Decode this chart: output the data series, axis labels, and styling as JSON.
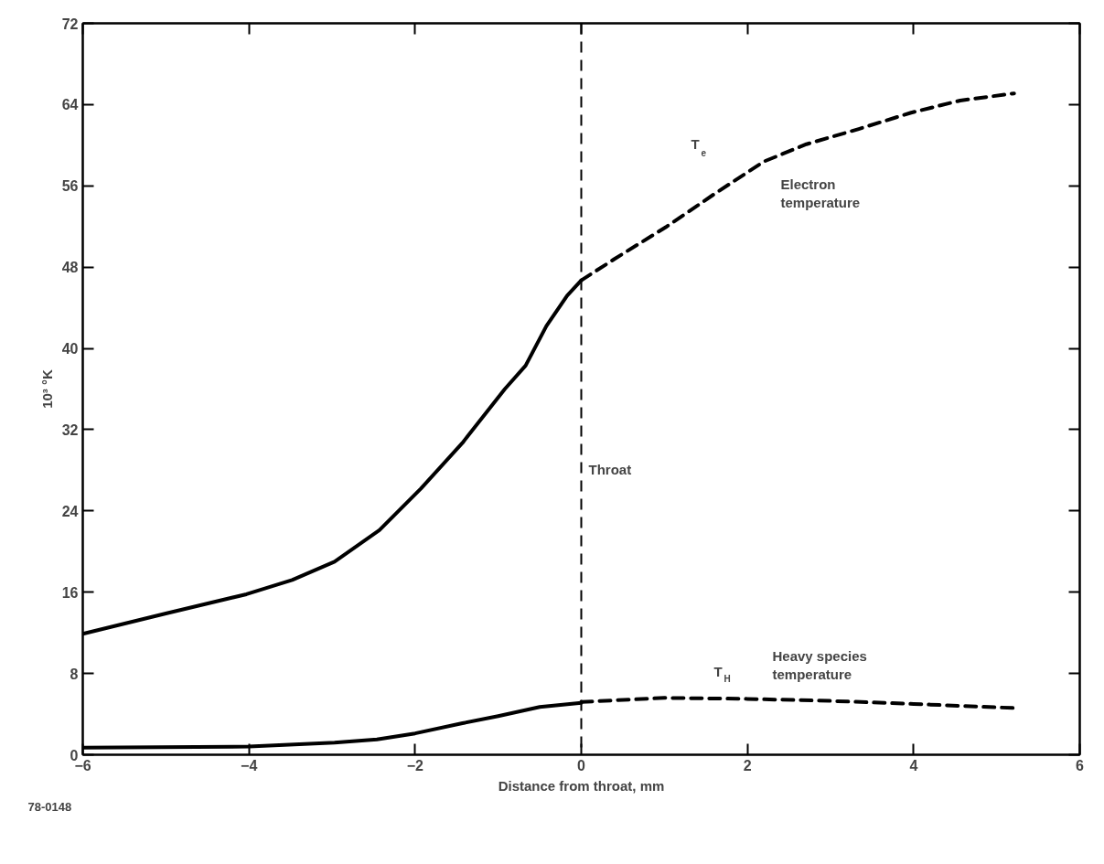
{
  "chart_data": {
    "type": "line",
    "xlabel": "Distance from throat, mm",
    "ylabel": "10³ °K",
    "xlim": [
      -6,
      6
    ],
    "ylim": [
      0,
      72
    ],
    "xticks": [
      -6,
      -4,
      -2,
      0,
      2,
      4,
      6
    ],
    "yticks": [
      0,
      8,
      16,
      24,
      32,
      40,
      48,
      56,
      64,
      72
    ],
    "grid": false,
    "marker": "none",
    "series": [
      {
        "color": "#000000",
        "line_style": "solid",
        "x": [
          -6,
          -5,
          -4.03,
          -3.48,
          -2.97,
          -2.43,
          -1.93,
          -1.43,
          -0.92,
          -0.67,
          -0.42,
          -0.17,
          0
        ],
        "values": [
          11.9,
          13.9,
          15.8,
          17.2,
          19.0,
          22.1,
          26.2,
          30.7,
          36.0,
          38.3,
          42.2,
          45.2,
          46.7
        ]
      },
      {
        "color": "#000000",
        "line_style": "dashed",
        "x": [
          0,
          0.4,
          1.03,
          1.62,
          2.2,
          2.71,
          3.34,
          3.97,
          4.56,
          5.21
        ],
        "values": [
          46.7,
          48.8,
          52.0,
          55.3,
          58.4,
          60.1,
          61.6,
          63.2,
          64.4,
          65.1
        ]
      },
      {
        "color": "#000000",
        "line_style": "solid",
        "x": [
          -6,
          -4,
          -2.97,
          -2.46,
          -2.0,
          -1.43,
          -1.0,
          -0.5,
          0
        ],
        "values": [
          0.7,
          0.8,
          1.2,
          1.5,
          2.1,
          3.1,
          3.8,
          4.7,
          5.1
        ]
      },
      {
        "color": "#000000",
        "line_style": "dashed",
        "x": [
          0,
          1,
          2,
          3,
          4,
          5.2
        ],
        "values": [
          5.2,
          5.6,
          5.5,
          5.3,
          5.0,
          4.6
        ]
      }
    ],
    "ref_lines": [
      {
        "axis": "x",
        "value": 0,
        "label": "Throat",
        "color": "#000000",
        "line_style": "dashed"
      }
    ],
    "annotations": [
      "T$_{e}$",
      "Electron\ntemperature",
      "T$_{H}$",
      "Heavy species\ntemperature",
      "78-0148"
    ]
  }
}
